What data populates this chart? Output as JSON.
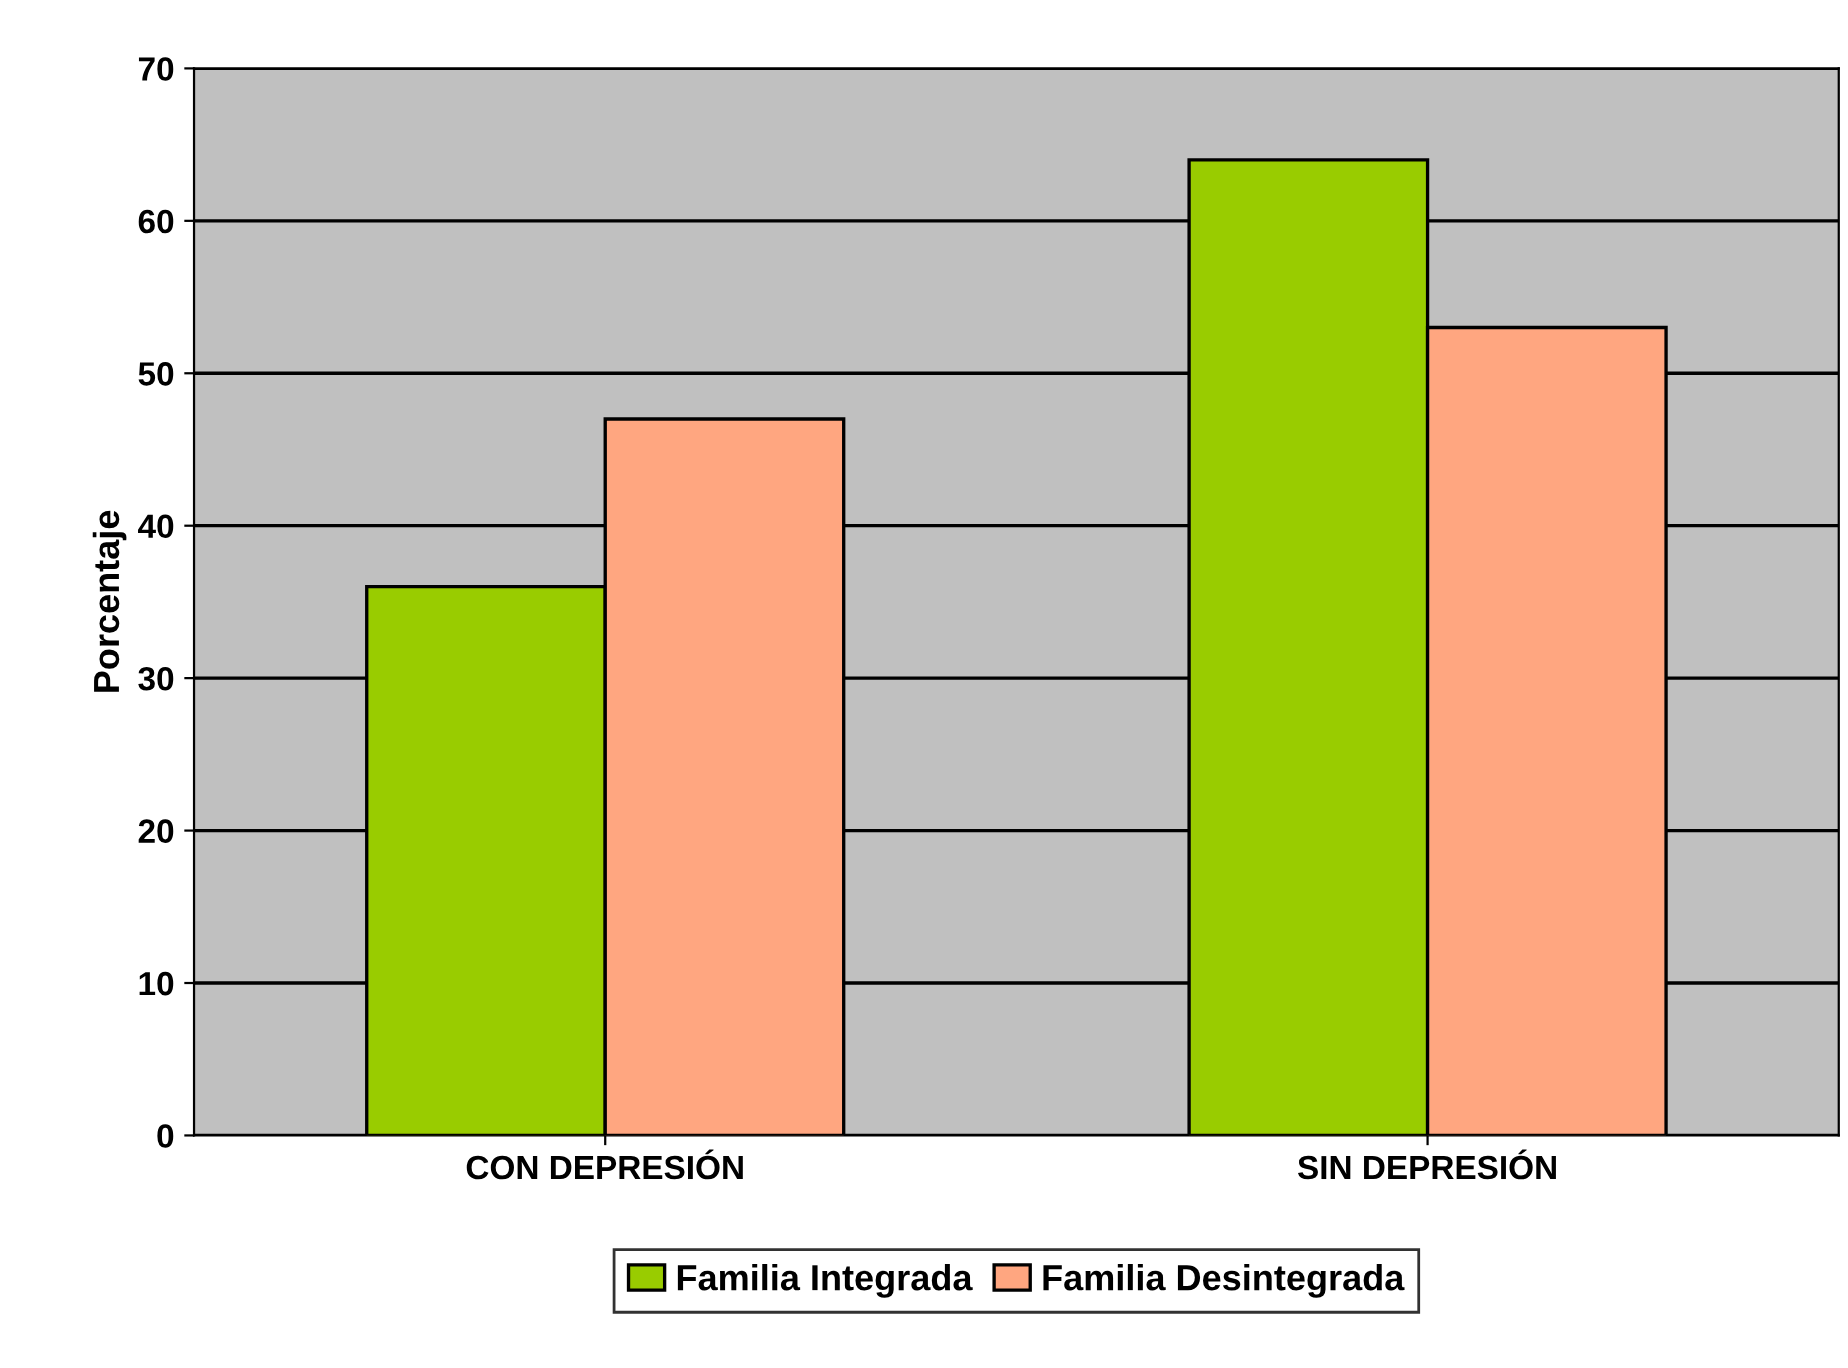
{
  "chart_data": {
    "type": "bar",
    "ylabel": "Porcentaje",
    "categories": [
      "CON DEPRESIÓN",
      "SIN DEPRESIÓN"
    ],
    "series": [
      {
        "name": "Familia Integrada",
        "color": "#99cc00",
        "values": [
          36,
          64
        ]
      },
      {
        "name": "Familia Desintegrada",
        "color": "#ffa680",
        "values": [
          47,
          53
        ]
      }
    ],
    "ylim": [
      0,
      70
    ],
    "yticks": [
      0,
      10,
      20,
      30,
      40,
      50,
      60,
      70
    ],
    "grid": "y",
    "legend": "bottom"
  }
}
